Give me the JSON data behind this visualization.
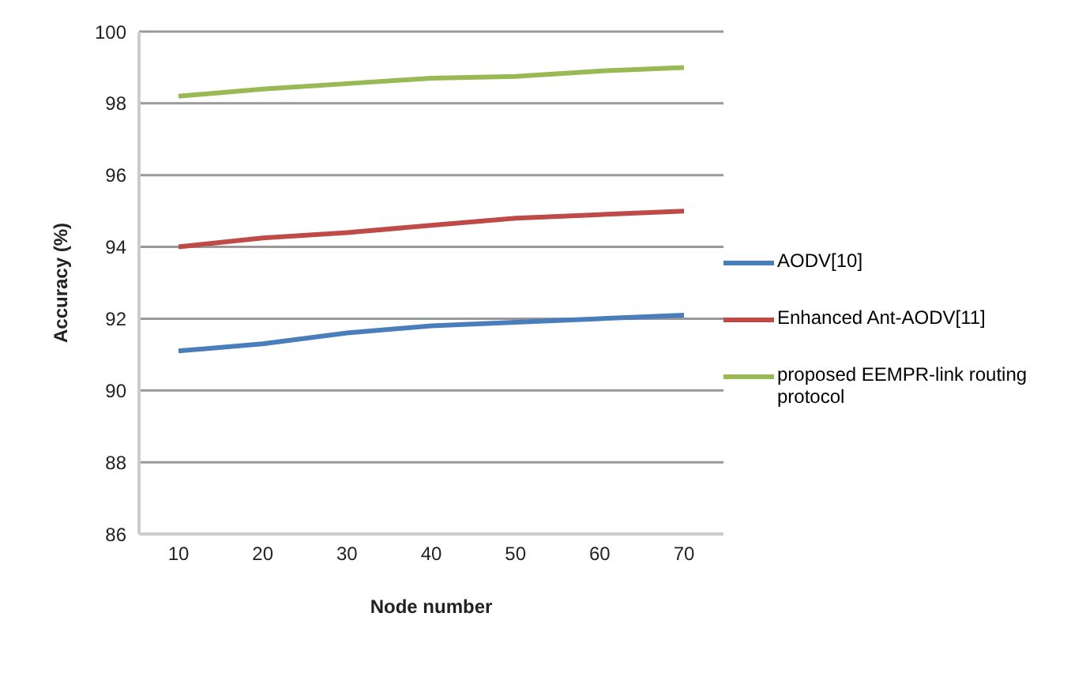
{
  "chart_data": {
    "type": "line",
    "xlabel": "Node number",
    "ylabel": "Accuracy  (%)",
    "categories": [
      "10",
      "20",
      "30",
      "40",
      "50",
      "60",
      "70"
    ],
    "series": [
      {
        "name": "AODV[10]",
        "color": "#4a7ebb",
        "values": [
          91.1,
          91.3,
          91.6,
          91.8,
          91.9,
          92.0,
          92.1
        ]
      },
      {
        "name": "Enhanced Ant-AODV[11]",
        "color": "#be4b48",
        "values": [
          94.0,
          94.25,
          94.4,
          94.6,
          94.8,
          94.9,
          95.0
        ]
      },
      {
        "name": "proposed EEMPR-link routing protocol",
        "color": "#98b954",
        "values": [
          98.2,
          98.4,
          98.55,
          98.7,
          98.75,
          98.9,
          99.0
        ]
      }
    ],
    "ylim": [
      86,
      100
    ],
    "yticks": [
      86,
      88,
      90,
      92,
      94,
      96,
      98,
      100
    ],
    "grid": "y",
    "legend": "right",
    "marker": "none",
    "line_style": "solid"
  }
}
